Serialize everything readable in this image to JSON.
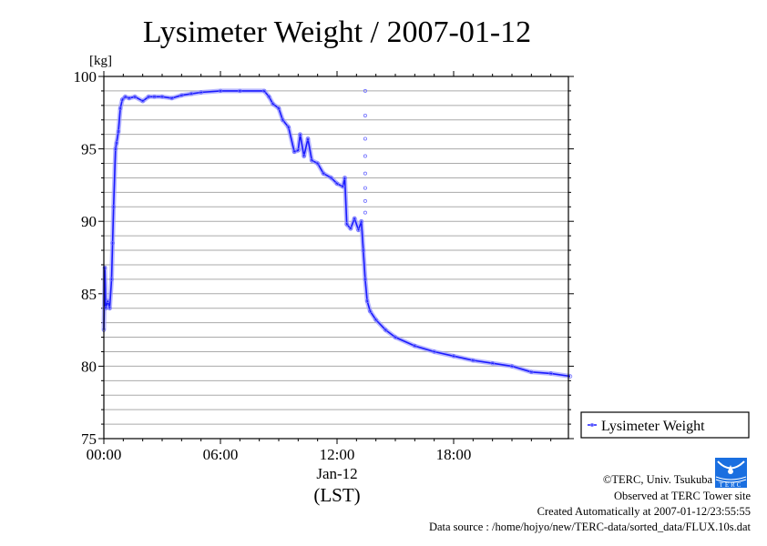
{
  "chart_data": {
    "type": "line",
    "title": "Lysimeter Weight / 2007-01-12",
    "ylabel": "[kg]",
    "xlabel": "(LST)",
    "date_label": "Jan-12",
    "ylim": [
      75,
      100
    ],
    "xlim_hours": [
      0,
      24
    ],
    "y_ticks": [
      75,
      80,
      85,
      90,
      95,
      100
    ],
    "x_ticks": [
      {
        "hour": 0,
        "label": "00:00"
      },
      {
        "hour": 6,
        "label": "06:00"
      },
      {
        "hour": 12,
        "label": "12:00"
      },
      {
        "hour": 18,
        "label": "18:00"
      }
    ],
    "grid": true,
    "legend": {
      "position": "right",
      "entries": [
        "Lysimeter Weight"
      ]
    },
    "series": [
      {
        "name": "Lysimeter Weight",
        "color": "#1a1aff",
        "x_hours": [
          0,
          0.05,
          0.1,
          0.2,
          0.3,
          0.4,
          0.45,
          0.5,
          0.6,
          0.65,
          0.75,
          0.85,
          0.95,
          1.1,
          1.3,
          1.6,
          2.0,
          2.3,
          2.6,
          3.0,
          3.5,
          4.0,
          4.5,
          5.0,
          6.0,
          7.0,
          8.25,
          8.5,
          8.7,
          9.0,
          9.2,
          9.5,
          9.8,
          10.0,
          10.1,
          10.3,
          10.5,
          10.7,
          11.0,
          11.3,
          11.7,
          12.0,
          12.3,
          12.4,
          12.5,
          12.7,
          12.9,
          13.1,
          13.25,
          13.35,
          13.45,
          13.55,
          13.7,
          14.0,
          14.5,
          15.0,
          16.0,
          17.0,
          18.0,
          19.0,
          20.0,
          21.0,
          22.0,
          23.0,
          24.0
        ],
        "y_kg": [
          82.5,
          86.8,
          84.0,
          84.5,
          84.0,
          86.0,
          88.5,
          91.0,
          95.0,
          95.4,
          96.2,
          97.8,
          98.4,
          98.6,
          98.5,
          98.6,
          98.3,
          98.6,
          98.6,
          98.6,
          98.5,
          98.7,
          98.8,
          98.9,
          99.0,
          99.0,
          99.0,
          98.6,
          98.1,
          97.8,
          97.0,
          96.5,
          94.8,
          94.9,
          96.0,
          94.5,
          95.7,
          94.2,
          94.0,
          93.3,
          93.0,
          92.6,
          92.4,
          93.0,
          89.8,
          89.5,
          90.2,
          89.4,
          90.0,
          88.0,
          86.0,
          84.5,
          83.8,
          83.2,
          82.5,
          82.0,
          81.4,
          81.0,
          80.7,
          80.4,
          80.2,
          80.0,
          79.6,
          79.5,
          79.3
        ],
        "outliers": {
          "x_hours": [
            13.45,
            13.45,
            13.45,
            13.45,
            13.45,
            13.45,
            13.45,
            13.45
          ],
          "y_kg": [
            99.0,
            97.3,
            95.7,
            94.5,
            93.3,
            92.3,
            91.4,
            90.6
          ]
        }
      }
    ]
  },
  "footer": {
    "copyright": "©TERC, Univ. Tsukuba",
    "site": "Observed at TERC Tower site",
    "created": "Created Automatically at 2007-01-12/23:55:55",
    "source": "Data source : /home/hojyo/new/TERC-data/sorted_data/FLUX.10s.dat",
    "logo_text": "TERC"
  }
}
